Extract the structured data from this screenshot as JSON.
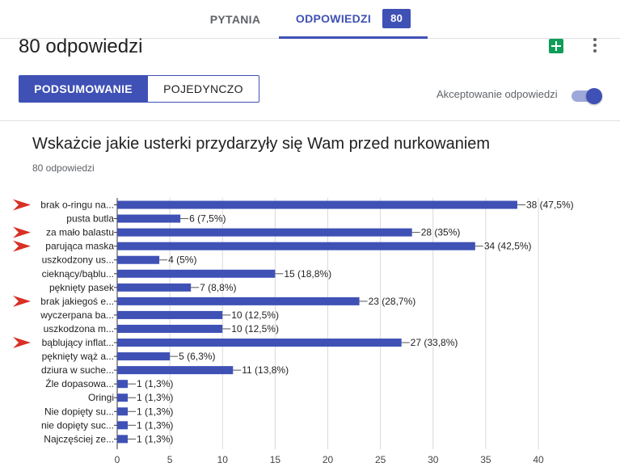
{
  "tabs": {
    "questions": "PYTANIA",
    "responses": "ODPOWIEDZI",
    "responses_count": "80"
  },
  "header": {
    "title": "80 odpowiedzi"
  },
  "view_toggle": {
    "summary": "PODSUMOWANIE",
    "individual": "POJEDYNCZO"
  },
  "accepting": {
    "label": "Akceptowanie odpowiedzi",
    "enabled": true
  },
  "question": {
    "title": "Wskażcie jakie usterki przydarzyły się Wam przed nurkowaniem",
    "responses": "80 odpowiedzi"
  },
  "colors": {
    "accent": "#3f51b5",
    "bar": "#3f51b5",
    "arrow": "#d93025",
    "sheets": "#0f9d58"
  },
  "chart_data": {
    "type": "bar",
    "orientation": "horizontal",
    "categories": [
      "brak o-ringu na...",
      "pusta butla",
      "za mało balastu",
      "parująca maska",
      "uszkodzony us...",
      "cieknący/bąblu...",
      "pęknięty pasek",
      "brak jakiegoś e...",
      "wyczerpana ba...",
      "uszkodzona m...",
      "bąblujący inflat...",
      "pęknięty wąż a...",
      "dziura w suche...",
      "Źle dopasowa...",
      "Oringi",
      "Nie dopięty su...",
      "nie dopięty suc...",
      "Najczęściej ze..."
    ],
    "values": [
      38,
      6,
      28,
      34,
      4,
      15,
      7,
      23,
      10,
      10,
      27,
      5,
      11,
      1,
      1,
      1,
      1,
      1
    ],
    "value_labels": [
      "38 (47,5%)",
      "6 (7,5%)",
      "28 (35%)",
      "34 (42,5%)",
      "4 (5%)",
      "15 (18,8%)",
      "7 (8,8%)",
      "23 (28,7%)",
      "10 (12,5%)",
      "10 (12,5%)",
      "27 (33,8%)",
      "5 (6,3%)",
      "11 (13,8%)",
      "1 (1,3%)",
      "1 (1,3%)",
      "1 (1,3%)",
      "1 (1,3%)",
      "1 (1,3%)"
    ],
    "highlighted": [
      true,
      false,
      true,
      true,
      false,
      false,
      false,
      true,
      false,
      false,
      true,
      false,
      false,
      false,
      false,
      false,
      false,
      false
    ],
    "x_ticks": [
      "0",
      "5",
      "10",
      "15",
      "20",
      "25",
      "30",
      "35",
      "40"
    ],
    "xlim": [
      0,
      40
    ],
    "grid": true
  }
}
